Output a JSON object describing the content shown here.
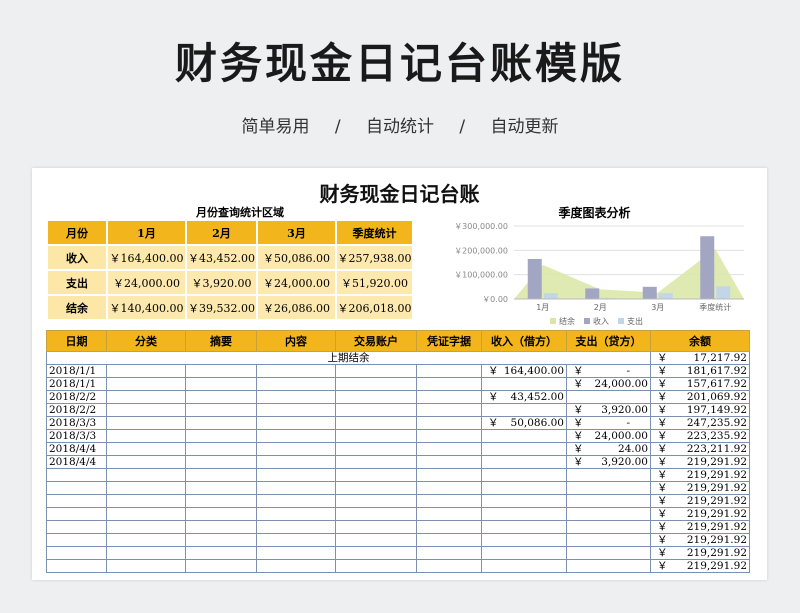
{
  "header": {
    "title": "财务现金日记台账模版",
    "tags": [
      "简单易用",
      "自动统计",
      "自动更新"
    ],
    "separator": "/"
  },
  "sheet": {
    "title": "财务现金日记台账",
    "summary_caption": "月份查询统计区域",
    "chart_caption": "季度图表分析",
    "summary": {
      "headers": [
        "月份",
        "1月",
        "2月",
        "3月",
        "季度统计"
      ],
      "rows": [
        {
          "label": "收入",
          "values": [
            "￥164,400.00",
            "￥43,452.00",
            "￥50,086.00",
            "￥257,938.00"
          ]
        },
        {
          "label": "支出",
          "values": [
            "￥24,000.00",
            "￥3,920.00",
            "￥24,000.00",
            "￥51,920.00"
          ]
        },
        {
          "label": "结余",
          "values": [
            "￥140,400.00",
            "￥39,532.00",
            "￥26,086.00",
            "￥206,018.00"
          ]
        }
      ]
    },
    "ledger": {
      "headers": [
        "日期",
        "分类",
        "摘要",
        "内容",
        "交易账户",
        "凭证字据",
        "收入（借方）",
        "支出（贷方）",
        "余额"
      ],
      "opening_label": "上期结余",
      "opening_balance": "17,217.92",
      "currency": "￥",
      "rows": [
        {
          "date": "2018/1/1",
          "income": "164,400.00",
          "expense": "-",
          "balance": "181,617.92"
        },
        {
          "date": "2018/1/1",
          "income": "",
          "expense": "24,000.00",
          "balance": "157,617.92"
        },
        {
          "date": "2018/2/2",
          "income": "43,452.00",
          "expense": "",
          "balance": "201,069.92"
        },
        {
          "date": "2018/2/2",
          "income": "",
          "expense": "3,920.00",
          "balance": "197,149.92"
        },
        {
          "date": "2018/3/3",
          "income": "50,086.00",
          "expense": "-",
          "balance": "247,235.92"
        },
        {
          "date": "2018/3/3",
          "income": "",
          "expense": "24,000.00",
          "balance": "223,235.92"
        },
        {
          "date": "2018/4/4",
          "income": "",
          "expense": "24.00",
          "balance": "223,211.92"
        },
        {
          "date": "2018/4/4",
          "income": "",
          "expense": "3,920.00",
          "balance": "219,291.92"
        },
        {
          "date": "",
          "income": "",
          "expense": "",
          "balance": "219,291.92"
        },
        {
          "date": "",
          "income": "",
          "expense": "",
          "balance": "219,291.92"
        },
        {
          "date": "",
          "income": "",
          "expense": "",
          "balance": "219,291.92"
        },
        {
          "date": "",
          "income": "",
          "expense": "",
          "balance": "219,291.92"
        },
        {
          "date": "",
          "income": "",
          "expense": "",
          "balance": "219,291.92"
        },
        {
          "date": "",
          "income": "",
          "expense": "",
          "balance": "219,291.92"
        },
        {
          "date": "",
          "income": "",
          "expense": "",
          "balance": "219,291.92"
        },
        {
          "date": "",
          "income": "",
          "expense": "",
          "balance": "219,291.92"
        }
      ]
    }
  },
  "chart_data": {
    "type": "bar",
    "categories": [
      "1月",
      "2月",
      "3月",
      "季度统计"
    ],
    "series": [
      {
        "name": "结余",
        "type": "area",
        "values": [
          140400,
          39532,
          26086,
          206018
        ]
      },
      {
        "name": "收入",
        "type": "bar",
        "values": [
          164400,
          43452,
          50086,
          257938
        ]
      },
      {
        "name": "支出",
        "type": "bar",
        "values": [
          24000,
          3920,
          24000,
          51920
        ]
      }
    ],
    "yticks": [
      "￥0.00",
      "￥100,000.00",
      "￥200,000.00",
      "￥300,000.00"
    ],
    "ylim": [
      0,
      300000
    ],
    "grid": true,
    "legend_position": "bottom",
    "colors": {
      "income": "#a3a6c3",
      "expense": "#c3d6e8",
      "balance": "#d9e6a6"
    }
  }
}
